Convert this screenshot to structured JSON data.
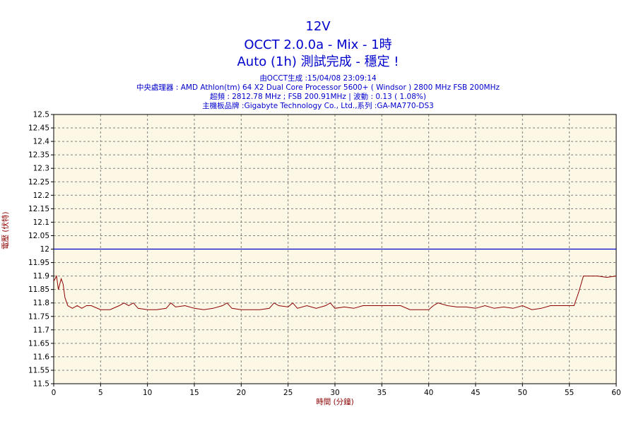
{
  "titles": {
    "line1": "12V",
    "line2": "OCCT 2.0.0a - Mix - 1時",
    "line3": "Auto (1h) 測試完成 - 穩定 !"
  },
  "info": {
    "line1": "由OCCT生成 :15/04/08 23:09:14",
    "line2": "中央處理器 : AMD Athlon(tm) 64 X2 Dual Core Processor 5600+ ( Windsor ) 2800 MHz FSB 200MHz",
    "line3": "超頻 : 2812.78 MHz ; FSB 200.91MHz | 波動 : 0.13 ( 1.08%)",
    "line4": "主機板品牌 :Gigabyte Technology Co., Ltd.,系列 :GA-MA770-DS3"
  },
  "colors": {
    "plot_background": "#fdf8e6",
    "title": "#0000cc",
    "axis_label": "#8b0000",
    "data_line": "#8b0000",
    "reference_line": "#0000cc",
    "grid": "#808080"
  },
  "chart_data": {
    "type": "line",
    "xlabel": "時間 (分鐘)",
    "ylabel": "電壓 (伏特)",
    "xlim": [
      0,
      60
    ],
    "ylim": [
      11.5,
      12.5
    ],
    "x_ticks": [
      0,
      5,
      10,
      15,
      20,
      25,
      30,
      35,
      40,
      45,
      50,
      55,
      60
    ],
    "y_ticks": [
      "11.5",
      "11.55",
      "11.6",
      "11.65",
      "11.7",
      "11.75",
      "11.8",
      "11.85",
      "11.9",
      "11.95",
      "12",
      "12.05",
      "12.1",
      "12.15",
      "12.2",
      "12.25",
      "12.3",
      "12.35",
      "12.4",
      "12.45",
      "12.5"
    ],
    "grid": true,
    "reference_line": {
      "y": 12
    },
    "series": [
      {
        "x": [
          0,
          0.3,
          0.5,
          0.8,
          1.0,
          1.2,
          1.5,
          2,
          2.5,
          3,
          3.5,
          4,
          5,
          6,
          7,
          7.5,
          8,
          8.5,
          9,
          10,
          11,
          12,
          12.5,
          13,
          14,
          15,
          16,
          17,
          18,
          18.5,
          19,
          20,
          21,
          22,
          23,
          23.5,
          24,
          25,
          25.5,
          26,
          27,
          28,
          29,
          29.5,
          30,
          31,
          32,
          33,
          34,
          35,
          36,
          37,
          38,
          39,
          40,
          40.5,
          41,
          42,
          43,
          44,
          45,
          46,
          47,
          48,
          49,
          50,
          51,
          52,
          53,
          54,
          55,
          55.5,
          56,
          56.5,
          57,
          58,
          59,
          60
        ],
        "y": [
          11.88,
          11.9,
          11.85,
          11.89,
          11.87,
          11.82,
          11.79,
          11.78,
          11.79,
          11.78,
          11.79,
          11.79,
          11.775,
          11.775,
          11.79,
          11.8,
          11.79,
          11.8,
          11.78,
          11.775,
          11.775,
          11.78,
          11.8,
          11.785,
          11.79,
          11.78,
          11.775,
          11.78,
          11.79,
          11.8,
          11.78,
          11.775,
          11.775,
          11.775,
          11.78,
          11.8,
          11.79,
          11.785,
          11.8,
          11.78,
          11.79,
          11.78,
          11.79,
          11.8,
          11.78,
          11.785,
          11.78,
          11.79,
          11.79,
          11.79,
          11.79,
          11.79,
          11.775,
          11.775,
          11.775,
          11.79,
          11.8,
          11.79,
          11.785,
          11.785,
          11.78,
          11.79,
          11.78,
          11.785,
          11.78,
          11.79,
          11.775,
          11.78,
          11.79,
          11.79,
          11.79,
          11.79,
          11.84,
          11.9,
          11.9,
          11.9,
          11.895,
          11.9
        ]
      }
    ]
  }
}
